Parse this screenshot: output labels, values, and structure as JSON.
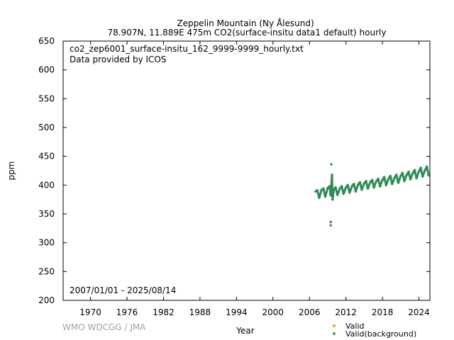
{
  "chart_data": {
    "type": "scatter",
    "title": "Zeppelin Mountain (Ny Ålesund)",
    "subtitle": "78.907N, 11.889E 475m    CO2(surface-insitu data1 default) hourly",
    "xlabel": "Year",
    "ylabel": "ppm",
    "xlim": [
      1965.5,
      2025.8
    ],
    "ylim": [
      200,
      650
    ],
    "xticks": [
      "1970",
      "1976",
      "1982",
      "1988",
      "1994",
      "2000",
      "2006",
      "2012",
      "2018",
      "2024"
    ],
    "yticks": [
      "200",
      "250",
      "300",
      "350",
      "400",
      "450",
      "500",
      "550",
      "600",
      "650"
    ],
    "annotations": [
      "co2_zep6001_surface-insitu_162_9999-9999_hourly.txt",
      "Data provided by ICOS",
      "2007/01/01 - 2025/08/14"
    ],
    "grid": false,
    "legend_position": "bottom-right",
    "series": [
      {
        "name": "Valid",
        "color": "#d4a600",
        "marker": "diamond",
        "x": [],
        "y": []
      },
      {
        "name": "Valid(background)",
        "color": "#2e8b57",
        "marker": "diamond",
        "x": [
          2007.0,
          2007.3,
          2007.6,
          2008.0,
          2008.3,
          2008.6,
          2009.0,
          2009.3,
          2009.5,
          2009.8,
          2010.0,
          2010.3,
          2010.6,
          2011.0,
          2011.3,
          2011.6,
          2012.0,
          2012.3,
          2012.6,
          2013.0,
          2013.3,
          2013.6,
          2014.0,
          2014.3,
          2014.6,
          2015.0,
          2015.3,
          2015.6,
          2016.0,
          2016.3,
          2016.6,
          2017.0,
          2017.3,
          2017.6,
          2018.0,
          2018.3,
          2018.6,
          2019.0,
          2019.3,
          2019.6,
          2020.0,
          2020.3,
          2020.6,
          2021.0,
          2021.3,
          2021.6,
          2022.0,
          2022.3,
          2022.6,
          2023.0,
          2023.3,
          2023.6,
          2024.0,
          2024.3,
          2024.6,
          2025.0,
          2025.3,
          2025.6,
          2009.5,
          2009.5,
          2009.6,
          2009.7
        ],
        "y": [
          389,
          391,
          378,
          392,
          394,
          380,
          395,
          398,
          382,
          375,
          392,
          396,
          383,
          394,
          398,
          385,
          396,
          400,
          387,
          398,
          402,
          389,
          401,
          405,
          392,
          403,
          407,
          394,
          405,
          409,
          396,
          407,
          411,
          398,
          409,
          414,
          400,
          411,
          416,
          402,
          413,
          418,
          404,
          416,
          421,
          407,
          418,
          423,
          410,
          421,
          426,
          412,
          424,
          430,
          415,
          426,
          432,
          417,
          330,
          336,
          436,
          418
        ]
      }
    ]
  },
  "footer": {
    "watermark": "WMO WDCGG / JMA"
  }
}
